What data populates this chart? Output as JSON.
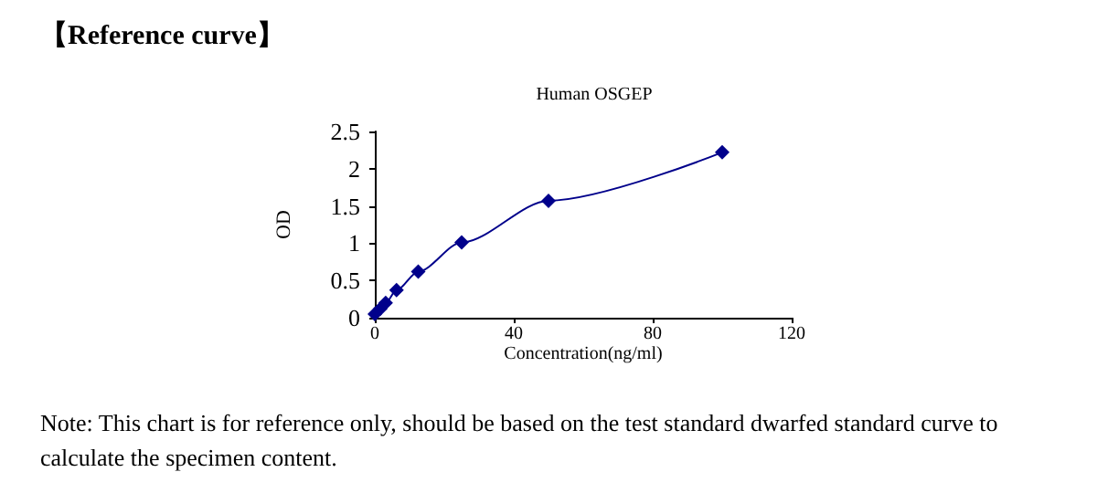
{
  "chart_data": {
    "type": "line",
    "title": "【Reference curve】",
    "subtitle": "Human OSGEP",
    "xlabel": "Concentration(ng/ml)",
    "ylabel": "OD",
    "x": [
      0,
      1.56,
      3.125,
      6.25,
      12.5,
      25,
      50,
      100
    ],
    "series": [
      {
        "color": "#00008b",
        "values": [
          0.05,
          0.12,
          0.2,
          0.37,
          0.62,
          1.01,
          1.57,
          2.22
        ]
      }
    ],
    "xlim": [
      0,
      120
    ],
    "xticks": [
      0,
      40,
      80,
      120
    ],
    "ylim": [
      0,
      2.5
    ],
    "yticks": [
      0,
      0.5,
      1,
      1.5,
      2,
      2.5
    ],
    "grid": false,
    "marker": "diamond",
    "line_style": "solid",
    "annotations": [
      "Note: This chart is for reference only, should be based on the test standard dwarfed standard curve to calculate the specimen content."
    ]
  }
}
